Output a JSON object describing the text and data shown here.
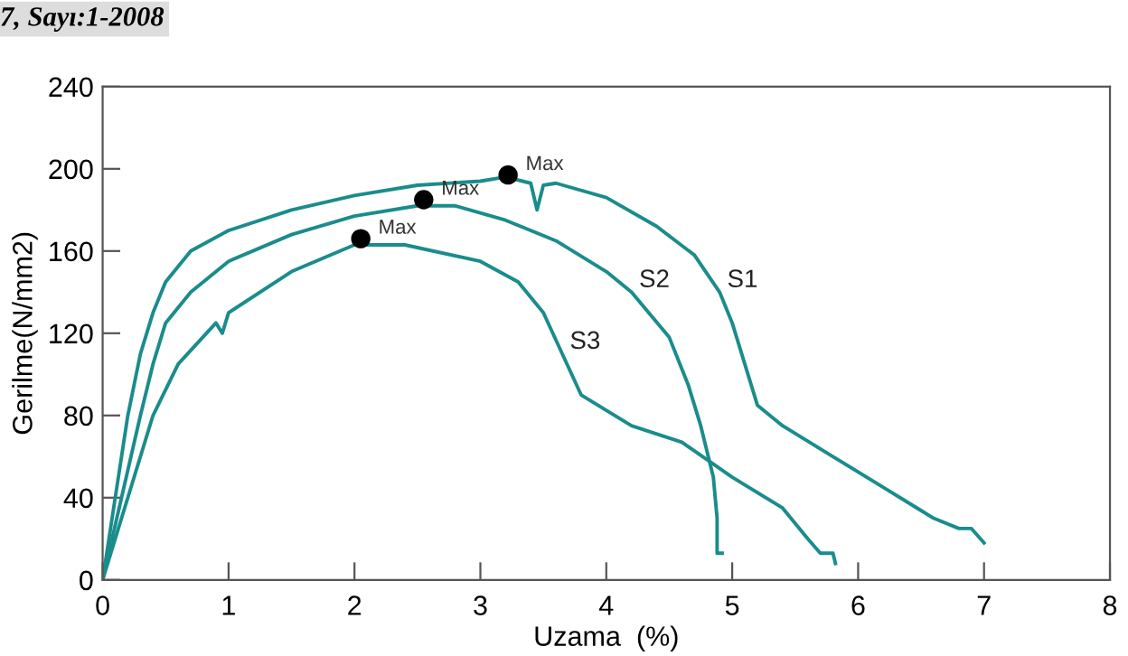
{
  "chart_data": {
    "type": "line",
    "xlabel": "Uzama  (%)",
    "ylabel": "Gerilme(N/mm2)",
    "annotations": [
      "7, Sayı:1-2008",
      {
        "text": "Max",
        "x": 3.22,
        "y": 197
      },
      {
        "text": "Max",
        "x": 2.55,
        "y": 185
      },
      {
        "text": "Max",
        "x": 2.05,
        "y": 166
      }
    ],
    "xlim": [
      0,
      8
    ],
    "xticks": [
      0,
      1,
      2,
      3,
      4,
      5,
      6,
      7,
      8
    ],
    "ylim": [
      0,
      240
    ],
    "yticks": [
      0,
      40,
      80,
      120,
      160,
      200,
      240
    ],
    "grid": false,
    "legend": false,
    "marker": "none",
    "line_style": "solid",
    "series": [
      {
        "name": "S1",
        "color": "#1a8c8c",
        "x": [
          0,
          0.1,
          0.2,
          0.3,
          0.4,
          0.5,
          0.7,
          1.0,
          1.5,
          2.0,
          2.5,
          3.0,
          3.2,
          3.4,
          3.45,
          3.5,
          3.6,
          4.0,
          4.4,
          4.7,
          4.9,
          5.0,
          5.1,
          5.2,
          5.4,
          5.8,
          6.2,
          6.6,
          6.8,
          6.9,
          7.0
        ],
        "values": [
          0,
          40,
          80,
          110,
          130,
          145,
          160,
          170,
          180,
          187,
          192,
          194,
          196,
          193,
          180,
          192,
          193,
          186,
          172,
          158,
          140,
          125,
          105,
          85,
          75,
          60,
          45,
          30,
          25,
          25,
          18
        ]
      },
      {
        "name": "S2",
        "color": "#1a8c8c",
        "x": [
          0,
          0.15,
          0.3,
          0.4,
          0.5,
          0.7,
          1.0,
          1.5,
          2.0,
          2.5,
          2.8,
          3.2,
          3.6,
          4.0,
          4.2,
          4.5,
          4.65,
          4.75,
          4.85,
          4.88,
          4.88,
          4.92
        ],
        "values": [
          0,
          40,
          80,
          105,
          125,
          140,
          155,
          168,
          177,
          182,
          182,
          175,
          165,
          150,
          140,
          118,
          95,
          75,
          50,
          30,
          13,
          13
        ]
      },
      {
        "name": "S3",
        "color": "#1a8c8c",
        "x": [
          0,
          0.2,
          0.4,
          0.6,
          0.9,
          0.95,
          1.0,
          1.5,
          2.0,
          2.4,
          3.0,
          3.3,
          3.5,
          3.65,
          3.8,
          4.2,
          4.6,
          5.0,
          5.4,
          5.6,
          5.7,
          5.8,
          5.82
        ],
        "values": [
          0,
          40,
          80,
          105,
          125,
          120,
          130,
          150,
          163,
          163,
          155,
          145,
          130,
          110,
          90,
          75,
          67,
          50,
          35,
          20,
          13,
          13,
          8
        ]
      },
      {
        "type": "scatter",
        "color": "#000000",
        "marker": "circle",
        "x": [
          3.22,
          2.55,
          2.05
        ],
        "values": [
          197,
          185,
          166
        ]
      }
    ]
  }
}
